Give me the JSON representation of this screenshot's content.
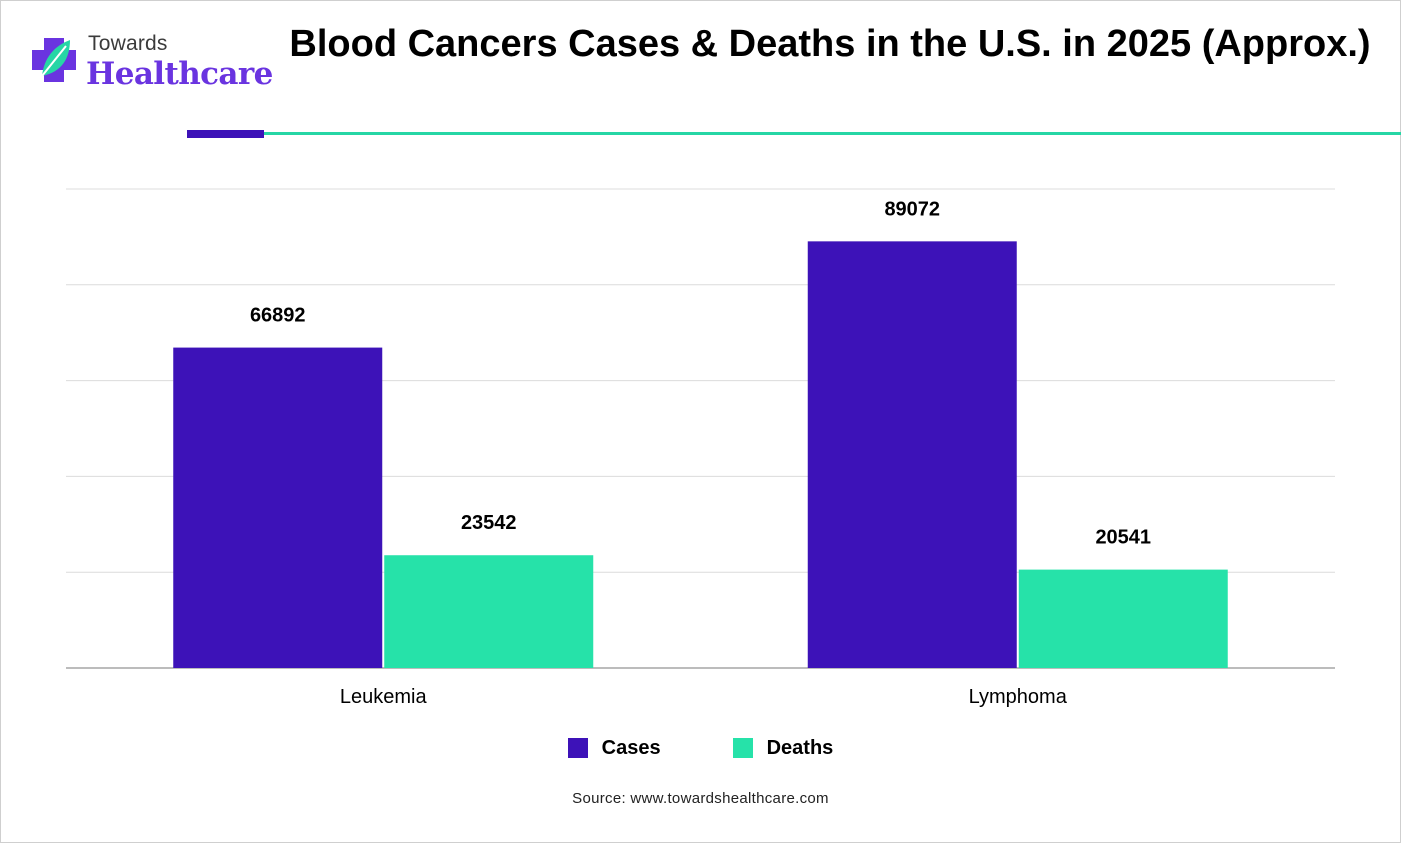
{
  "brand": {
    "top": "Towards",
    "bottom": "Healthcare",
    "colors": {
      "primary": "#6a34e0",
      "accent": "#26d6a5"
    }
  },
  "source": "Source: www.towardshealthcare.com",
  "chart_data": {
    "type": "bar",
    "title": "Blood Cancers Cases & Deaths in the U.S. in 2025 (Approx.)",
    "categories": [
      "Leukemia",
      "Lymphoma"
    ],
    "series": [
      {
        "name": "Cases",
        "color": "#3d12b8",
        "values": [
          66892,
          89072
        ]
      },
      {
        "name": "Deaths",
        "color": "#26e2a9",
        "values": [
          23542,
          20541
        ]
      }
    ],
    "ylim": [
      0,
      100000
    ],
    "y_tick_step": 20000,
    "y_tick_labels_visible": false,
    "grid": true,
    "legend": "bottom-center",
    "data_labels": true
  }
}
